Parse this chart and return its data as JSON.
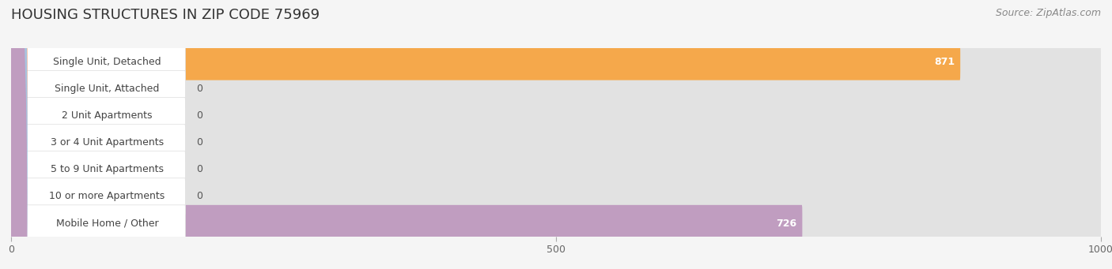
{
  "title": "HOUSING STRUCTURES IN ZIP CODE 75969",
  "source": "Source: ZipAtlas.com",
  "categories": [
    "Single Unit, Detached",
    "Single Unit, Attached",
    "2 Unit Apartments",
    "3 or 4 Unit Apartments",
    "5 to 9 Unit Apartments",
    "10 or more Apartments",
    "Mobile Home / Other"
  ],
  "values": [
    871,
    0,
    0,
    0,
    0,
    0,
    726
  ],
  "bar_colors": [
    "#F5A84B",
    "#F0A0A8",
    "#A8C4E0",
    "#A8C4E0",
    "#A8C4E0",
    "#A8C4E0",
    "#C09DC0"
  ],
  "xlim": [
    0,
    1000
  ],
  "xticks": [
    0,
    500,
    1000
  ],
  "bg_color": "#f5f5f5",
  "row_colors": [
    "#ffffff",
    "#efefef"
  ],
  "bar_bg_color": "#e2e2e2",
  "title_fontsize": 13,
  "source_fontsize": 9,
  "label_fontsize": 9,
  "value_fontsize": 9
}
